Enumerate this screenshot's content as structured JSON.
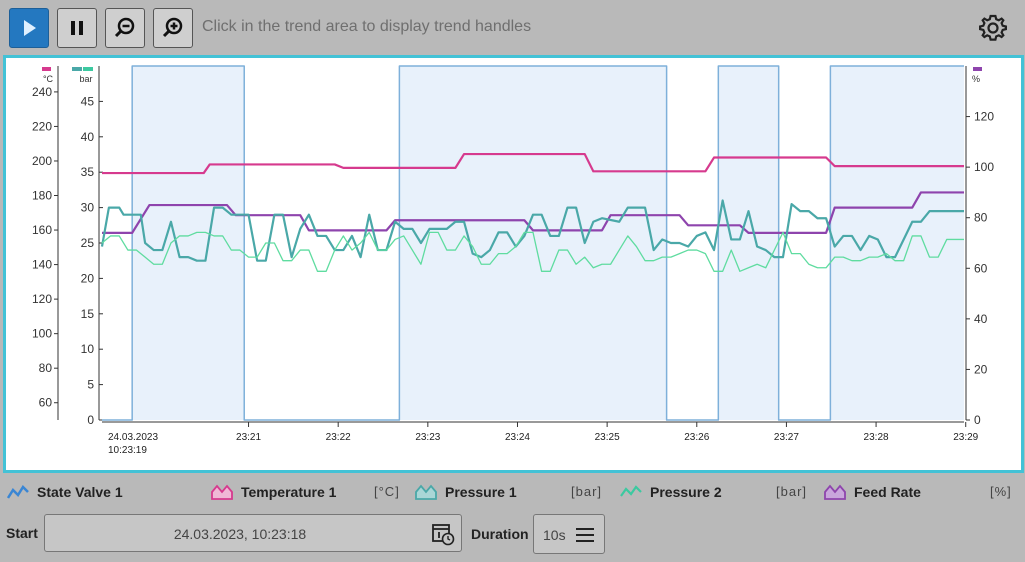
{
  "toolbar": {
    "hint": "Click in the trend area to display trend handles",
    "buttons": [
      "play-icon",
      "pause-icon",
      "zoom-out-icon",
      "zoom-in-icon"
    ],
    "settings_icon": "gear-icon"
  },
  "chart_data": {
    "type": "line",
    "x_start_label": [
      "24.03.2023",
      "10:23:19"
    ],
    "x_ticks": [
      "23:21",
      "23:22",
      "23:23",
      "23:24",
      "23:25",
      "23:26",
      "23:27",
      "23:28",
      "23:29"
    ],
    "axes": [
      {
        "id": "temp",
        "unit": "°C",
        "color": "#d63a8e",
        "ticks": [
          60,
          80,
          100,
          120,
          140,
          160,
          180,
          200,
          220,
          240
        ],
        "range": [
          50,
          255
        ]
      },
      {
        "id": "bar",
        "unit": "bar",
        "color": "#3cc9a0",
        "ticks": [
          0,
          5,
          10,
          15,
          20,
          25,
          30,
          35,
          40,
          45
        ],
        "range": [
          0,
          50
        ]
      },
      {
        "id": "pct",
        "unit": "%",
        "color": "#8e44ad",
        "ticks": [
          0,
          20,
          40,
          60,
          80,
          100,
          120
        ],
        "range": [
          0,
          140
        ]
      }
    ],
    "x_range": [
      0,
      100
    ],
    "series": [
      {
        "name": "State Valve 1",
        "axis": "pct",
        "color": "#7eb0da",
        "fill": "#e8f1fb",
        "points": [
          [
            0,
            0
          ],
          [
            3.5,
            0
          ],
          [
            3.5,
            140
          ],
          [
            16.5,
            140
          ],
          [
            16.5,
            0
          ],
          [
            34.5,
            0
          ],
          [
            34.5,
            140
          ],
          [
            65.5,
            140
          ],
          [
            65.5,
            0
          ],
          [
            71.5,
            0
          ],
          [
            71.5,
            140
          ],
          [
            78.5,
            140
          ],
          [
            78.5,
            0
          ],
          [
            84.5,
            0
          ],
          [
            84.5,
            140
          ],
          [
            100,
            140
          ]
        ]
      },
      {
        "name": "Temperature 1",
        "axis": "temp",
        "color": "#d63a8e",
        "points": [
          [
            0,
            193
          ],
          [
            11.8,
            193
          ],
          [
            12.5,
            198
          ],
          [
            27,
            198
          ],
          [
            28,
            196
          ],
          [
            41,
            196
          ],
          [
            42,
            204
          ],
          [
            56,
            204
          ],
          [
            57,
            194
          ],
          [
            70,
            194
          ],
          [
            71,
            202
          ],
          [
            84,
            202
          ],
          [
            85,
            197
          ],
          [
            100,
            197
          ]
        ]
      },
      {
        "name": "Feed Rate",
        "axis": "pct",
        "color": "#8e44ad",
        "points": [
          [
            0,
            74
          ],
          [
            3.5,
            74
          ],
          [
            5.5,
            85
          ],
          [
            14.5,
            85
          ],
          [
            15.5,
            81
          ],
          [
            23,
            81
          ],
          [
            24,
            75
          ],
          [
            33,
            75
          ],
          [
            34,
            79
          ],
          [
            49,
            79
          ],
          [
            50,
            75
          ],
          [
            58,
            75
          ],
          [
            59,
            81
          ],
          [
            67,
            81
          ],
          [
            68,
            77
          ],
          [
            74,
            77
          ],
          [
            75,
            74
          ],
          [
            84,
            74
          ],
          [
            85,
            84
          ],
          [
            94,
            84
          ],
          [
            95,
            90
          ],
          [
            100,
            90
          ]
        ]
      },
      {
        "name": "Pressure 1",
        "axis": "bar",
        "color": "#4aa8a8",
        "points": [
          [
            0,
            24.5
          ],
          [
            0.8,
            30
          ],
          [
            2,
            30
          ],
          [
            2.5,
            29
          ],
          [
            4.5,
            29
          ],
          [
            5,
            25
          ],
          [
            6,
            24
          ],
          [
            7,
            24
          ],
          [
            8,
            28
          ],
          [
            9,
            23
          ],
          [
            10,
            23
          ],
          [
            11,
            22.5
          ],
          [
            12,
            22.5
          ],
          [
            13,
            30
          ],
          [
            14,
            30
          ],
          [
            15,
            29
          ],
          [
            17,
            29
          ],
          [
            18,
            22.5
          ],
          [
            19,
            22.5
          ],
          [
            20,
            29
          ],
          [
            21,
            29
          ],
          [
            22,
            23
          ],
          [
            23,
            27
          ],
          [
            24,
            29
          ],
          [
            25,
            26
          ],
          [
            26,
            26
          ],
          [
            27,
            24
          ],
          [
            28,
            24
          ],
          [
            29,
            26
          ],
          [
            30,
            23
          ],
          [
            31,
            29
          ],
          [
            32,
            24
          ],
          [
            33,
            24
          ],
          [
            34,
            28
          ],
          [
            35,
            27
          ],
          [
            36,
            27
          ],
          [
            37,
            25
          ],
          [
            38,
            27
          ],
          [
            40,
            27
          ],
          [
            41,
            28
          ],
          [
            42,
            28
          ],
          [
            43,
            23.5
          ],
          [
            44,
            23
          ],
          [
            45,
            24
          ],
          [
            46,
            26.5
          ],
          [
            47,
            26.5
          ],
          [
            48,
            24.5
          ],
          [
            49,
            26
          ],
          [
            50,
            29
          ],
          [
            51,
            29
          ],
          [
            52,
            26
          ],
          [
            53,
            26
          ],
          [
            54,
            30
          ],
          [
            55,
            30
          ],
          [
            56,
            25
          ],
          [
            57,
            28
          ],
          [
            58,
            28.5
          ],
          [
            60,
            28
          ],
          [
            61,
            30
          ],
          [
            63,
            30
          ],
          [
            64,
            24
          ],
          [
            65,
            25.5
          ],
          [
            66,
            25
          ],
          [
            67,
            25
          ],
          [
            68,
            24.5
          ],
          [
            69,
            26
          ],
          [
            70,
            26.5
          ],
          [
            71,
            24
          ],
          [
            72,
            31
          ],
          [
            73,
            25.5
          ],
          [
            74,
            25.5
          ],
          [
            75,
            29.5
          ],
          [
            76,
            24.5
          ],
          [
            77,
            24
          ],
          [
            78,
            23
          ],
          [
            79,
            23
          ],
          [
            80,
            30.5
          ],
          [
            81,
            29.5
          ],
          [
            82,
            29.5
          ],
          [
            83,
            28.5
          ],
          [
            84,
            28.5
          ],
          [
            85,
            24.5
          ],
          [
            86,
            26
          ],
          [
            87,
            26
          ],
          [
            88,
            24
          ],
          [
            89,
            26
          ],
          [
            90,
            25.5
          ],
          [
            91,
            23
          ],
          [
            92,
            23
          ],
          [
            93,
            25.5
          ],
          [
            94,
            28
          ],
          [
            95,
            28
          ],
          [
            96,
            29.5
          ],
          [
            100,
            29.5
          ]
        ]
      },
      {
        "name": "Pressure 2",
        "axis": "bar",
        "color": "#5fdca0",
        "points": [
          [
            0,
            25
          ],
          [
            1,
            26
          ],
          [
            2,
            26
          ],
          [
            3,
            24
          ],
          [
            4,
            24
          ],
          [
            5,
            23
          ],
          [
            6,
            22
          ],
          [
            7,
            22
          ],
          [
            8,
            25
          ],
          [
            9,
            26
          ],
          [
            10,
            26
          ],
          [
            11,
            26.5
          ],
          [
            12,
            26.5
          ],
          [
            13,
            26
          ],
          [
            14,
            26
          ],
          [
            15,
            24
          ],
          [
            16,
            24
          ],
          [
            17,
            23
          ],
          [
            18,
            23
          ],
          [
            19,
            25
          ],
          [
            20,
            25
          ],
          [
            21,
            22.5
          ],
          [
            22,
            22.5
          ],
          [
            23,
            24
          ],
          [
            24,
            24
          ],
          [
            25,
            21
          ],
          [
            26,
            21
          ],
          [
            27,
            24
          ],
          [
            28,
            26
          ],
          [
            29,
            24
          ],
          [
            30,
            25
          ],
          [
            31,
            26.5
          ],
          [
            32,
            24
          ],
          [
            33,
            24
          ],
          [
            34,
            25.5
          ],
          [
            35,
            26
          ],
          [
            36,
            24
          ],
          [
            37,
            22
          ],
          [
            38,
            26.5
          ],
          [
            39,
            26.5
          ],
          [
            40,
            24
          ],
          [
            41,
            24
          ],
          [
            42,
            26
          ],
          [
            43,
            24.5
          ],
          [
            44,
            22
          ],
          [
            45,
            22
          ],
          [
            46,
            23.5
          ],
          [
            47,
            23.5
          ],
          [
            48,
            24.5
          ],
          [
            49,
            26.5
          ],
          [
            50,
            26.5
          ],
          [
            51,
            21
          ],
          [
            52,
            21
          ],
          [
            53,
            24
          ],
          [
            54,
            24
          ],
          [
            55,
            22
          ],
          [
            56,
            23
          ],
          [
            57,
            21.5
          ],
          [
            58,
            22
          ],
          [
            59,
            22
          ],
          [
            60,
            24
          ],
          [
            61,
            26
          ],
          [
            62,
            24.5
          ],
          [
            63,
            22.5
          ],
          [
            64,
            22.5
          ],
          [
            65,
            23
          ],
          [
            66,
            23
          ],
          [
            67,
            23.5
          ],
          [
            68,
            24
          ],
          [
            69,
            24
          ],
          [
            70,
            23.5
          ],
          [
            71,
            21
          ],
          [
            72,
            21
          ],
          [
            73,
            24
          ],
          [
            74,
            21
          ],
          [
            75,
            21.5
          ],
          [
            76,
            22
          ],
          [
            77,
            21.5
          ],
          [
            78,
            24
          ],
          [
            79,
            26.5
          ],
          [
            80,
            23.5
          ],
          [
            81,
            23.5
          ],
          [
            82,
            22
          ],
          [
            83,
            21.5
          ],
          [
            84,
            21.5
          ],
          [
            85,
            23
          ],
          [
            86,
            23
          ],
          [
            87,
            22.5
          ],
          [
            88,
            22.5
          ],
          [
            89,
            23
          ],
          [
            90,
            23
          ],
          [
            91,
            23.5
          ],
          [
            92,
            22.5
          ],
          [
            93,
            22.5
          ],
          [
            94,
            26
          ],
          [
            95,
            26
          ],
          [
            96,
            23
          ],
          [
            97,
            23
          ],
          [
            98,
            25.5
          ],
          [
            100,
            25.5
          ]
        ]
      }
    ]
  },
  "legend": [
    {
      "name": "State Valve 1",
      "icon": "state-valve-series-icon",
      "color": "#3a86d4",
      "unit": ""
    },
    {
      "name": "Temperature 1",
      "icon": "temperature-series-icon",
      "color": "#d63a8e",
      "unit": "[°C]"
    },
    {
      "name": "Pressure 1",
      "icon": "pressure-1-series-icon",
      "color": "#4aa8a8",
      "unit": "[bar]"
    },
    {
      "name": "Pressure 2",
      "icon": "pressure-2-series-icon",
      "color": "#3cc9a0",
      "unit": "[bar]"
    },
    {
      "name": "Feed Rate",
      "icon": "feed-rate-series-icon",
      "color": "#8e44ad",
      "unit": "[%]"
    }
  ],
  "controls": {
    "start_label": "Start",
    "start_value": "24.03.2023, 10:23:18",
    "duration_label": "Duration",
    "duration_value": "10s"
  }
}
